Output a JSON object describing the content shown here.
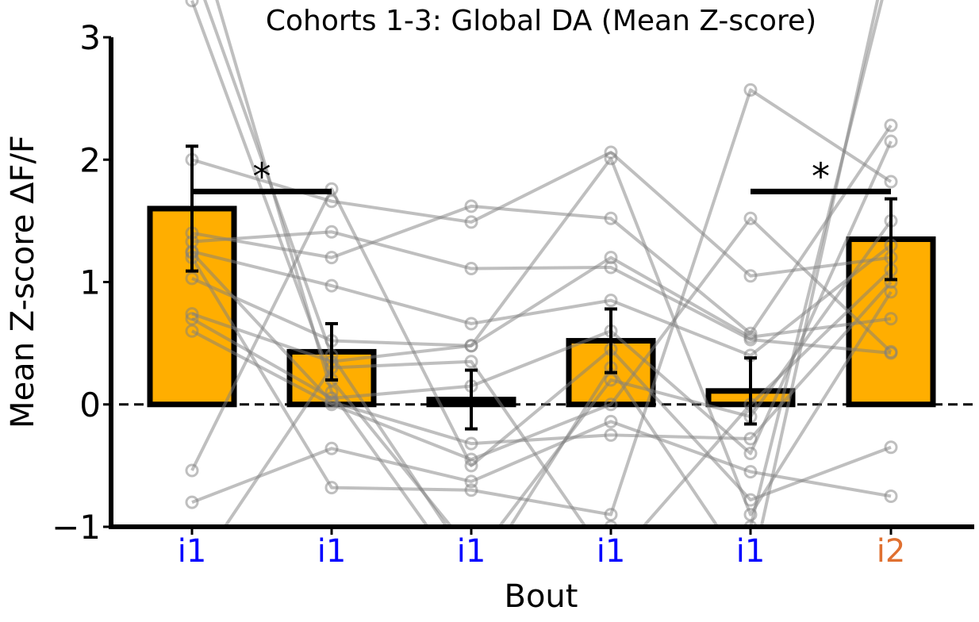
{
  "chart_data": {
    "type": "bar",
    "title": "Cohorts 1-3: Global DA (Mean Z-score)",
    "xlabel": "Bout",
    "ylabel": "Mean Z-score ΔF/F",
    "ylim": [
      -1,
      3
    ],
    "yticks": [
      -1,
      0,
      1,
      2,
      3
    ],
    "ytick_labels": [
      "−1",
      "0",
      "1",
      "2",
      "3"
    ],
    "categories": [
      "i1",
      "i1",
      "i1",
      "i1",
      "i1",
      "i2"
    ],
    "category_colors": [
      "#0000ff",
      "#0000ff",
      "#0000ff",
      "#0000ff",
      "#0000ff",
      "#e07030"
    ],
    "values": [
      1.6,
      0.43,
      0.04,
      0.52,
      0.11,
      1.35
    ],
    "errors": [
      0.51,
      0.23,
      0.24,
      0.26,
      0.27,
      0.33
    ],
    "bar_color": "#ffae00",
    "zero_line": "dashed",
    "significance": [
      {
        "from": 0,
        "to": 1,
        "y": 1.74,
        "label": "*"
      },
      {
        "from": 4,
        "to": 5,
        "y": 1.74,
        "label": "*"
      }
    ],
    "individual_series": [
      [
        2.0,
        1.66,
        1.49,
        2.06,
        1.05,
        1.2
      ],
      [
        1.4,
        1.2,
        1.62,
        1.52,
        0.58,
        2.28
      ],
      [
        1.33,
        1.41,
        1.11,
        1.12,
        0.53,
        0.42
      ],
      [
        1.25,
        0.97,
        0.66,
        0.85,
        0.4,
        1.3
      ],
      [
        1.03,
        0.52,
        0.48,
        1.2,
        0.55,
        0.7
      ],
      [
        0.74,
        0.35,
        0.48,
        2.01,
        -0.9,
        0.92
      ],
      [
        0.7,
        0.05,
        0.15,
        0.6,
        -0.4,
        2.15
      ],
      [
        0.6,
        0.0,
        -0.45,
        0.0,
        1.52,
        0.43
      ],
      [
        1.24,
        0.02,
        -0.32,
        -0.25,
        -0.28,
        1.0
      ],
      [
        -0.54,
        1.76,
        -0.5,
        0.45,
        -0.78,
        -0.35
      ],
      [
        -0.8,
        -0.36,
        -0.63,
        -0.14,
        -0.55,
        -0.75
      ],
      [
        1.2,
        -0.68,
        -0.7,
        -0.9,
        2.57,
        1.82
      ],
      [
        3.6,
        0.4,
        -1.3,
        0.2,
        -0.1,
        1.5
      ],
      [
        4.0,
        0.1,
        -1.5,
        0.3,
        -1.4,
        3.8
      ],
      [
        3.3,
        0.2,
        -1.2,
        -1.0,
        -1.0,
        3.6
      ],
      [
        -1.4,
        0.3,
        0.35,
        -1.3,
        0.0,
        1.1
      ]
    ]
  }
}
